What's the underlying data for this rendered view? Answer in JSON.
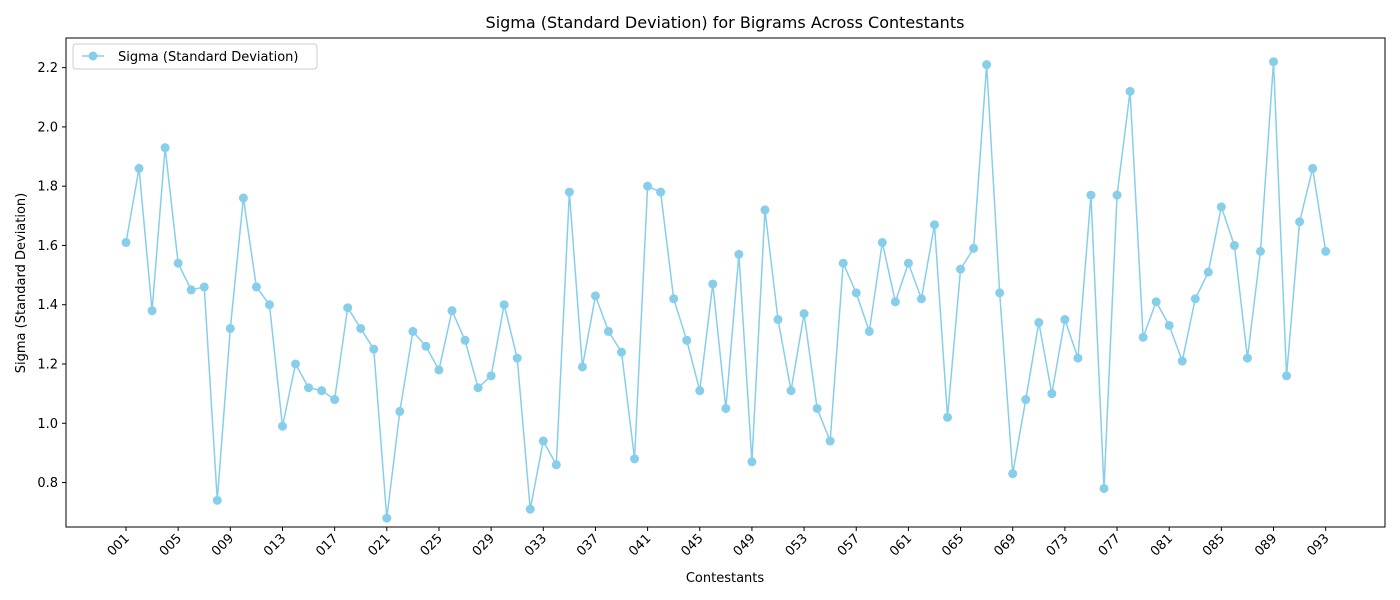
{
  "chart_data": {
    "type": "line",
    "title": "Sigma (Standard Deviation) for Bigrams Across Contestants",
    "xlabel": "Contestants",
    "ylabel": "Sigma (Standard Deviation)",
    "ylim": [
      0.65,
      2.3
    ],
    "yticks": [
      "0.8",
      "1.0",
      "1.2",
      "1.4",
      "1.6",
      "1.8",
      "2.0",
      "2.2"
    ],
    "xtick_labels": [
      "001",
      "005",
      "009",
      "013",
      "017",
      "021",
      "025",
      "029",
      "033",
      "037",
      "041",
      "045",
      "049",
      "053",
      "057",
      "061",
      "065",
      "069",
      "073",
      "077",
      "081",
      "085",
      "089",
      "093"
    ],
    "legend_position": "top-left",
    "grid": false,
    "color": "#87ceeb",
    "series": [
      {
        "name": "Sigma (Standard Deviation)",
        "x": [
          "001",
          "002",
          "003",
          "004",
          "005",
          "006",
          "007",
          "008",
          "009",
          "010",
          "011",
          "012",
          "013",
          "014",
          "015",
          "016",
          "017",
          "018",
          "019",
          "020",
          "021",
          "022",
          "023",
          "024",
          "025",
          "026",
          "027",
          "028",
          "029",
          "030",
          "031",
          "032",
          "033",
          "034",
          "035",
          "036",
          "037",
          "038",
          "039",
          "040",
          "041",
          "042",
          "043",
          "044",
          "045",
          "046",
          "047",
          "048",
          "049",
          "050",
          "051",
          "052",
          "053",
          "054",
          "055",
          "056",
          "057",
          "058",
          "059",
          "060",
          "061",
          "062",
          "063",
          "064",
          "065",
          "066",
          "067",
          "068",
          "069",
          "070",
          "071",
          "072",
          "073",
          "074",
          "075",
          "076",
          "077",
          "078",
          "079",
          "080",
          "081",
          "082",
          "083",
          "084",
          "085",
          "086",
          "087",
          "088",
          "089",
          "090",
          "091",
          "092",
          "093"
        ],
        "values": [
          1.61,
          1.86,
          1.38,
          1.93,
          1.54,
          1.45,
          1.46,
          0.74,
          1.32,
          1.76,
          1.46,
          1.4,
          0.99,
          1.2,
          1.12,
          1.11,
          1.08,
          1.39,
          1.32,
          1.25,
          0.68,
          1.04,
          1.31,
          1.26,
          1.18,
          1.38,
          1.28,
          1.12,
          1.16,
          1.4,
          1.22,
          0.71,
          0.94,
          0.86,
          1.78,
          1.19,
          1.43,
          1.31,
          1.24,
          0.88,
          1.8,
          1.78,
          1.42,
          1.28,
          1.11,
          1.47,
          1.05,
          1.57,
          0.87,
          1.72,
          1.35,
          1.11,
          1.37,
          1.05,
          0.94,
          1.54,
          1.44,
          1.31,
          1.61,
          1.41,
          1.54,
          1.42,
          1.67,
          1.02,
          1.52,
          1.59,
          2.21,
          1.44,
          0.83,
          1.08,
          1.34,
          1.1,
          1.35,
          1.22,
          1.77,
          0.78,
          1.77,
          2.12,
          1.29,
          1.41,
          1.33,
          1.21,
          1.42,
          1.51,
          1.73,
          1.6,
          1.22,
          1.58,
          2.22,
          1.16,
          1.68,
          1.86,
          1.58
        ]
      }
    ]
  }
}
